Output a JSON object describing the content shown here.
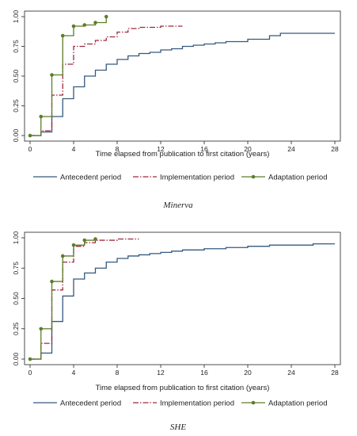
{
  "colors": {
    "antecedent": "#34597f",
    "implementation": "#a0283d",
    "adaptation": "#5d7d2a",
    "axis": "#222222"
  },
  "chart_data": [
    {
      "type": "line",
      "caption": "Minerva",
      "xlabel": "Time elapsed from publication to first citation (years)",
      "ylabel": "",
      "xlim": [
        0,
        28
      ],
      "ylim": [
        0,
        1
      ],
      "xticks": [
        0,
        4,
        8,
        12,
        16,
        20,
        24,
        28
      ],
      "yticks": [
        "0.00",
        "0.25",
        "0.50",
        "0.75",
        "1.00"
      ],
      "grid": false,
      "legend_position": "bottom",
      "series": [
        {
          "name": "Antecedent period",
          "style": "solid",
          "x": [
            0,
            1,
            2,
            3,
            4,
            5,
            6,
            7,
            8,
            9,
            10,
            11,
            12,
            13,
            14,
            15,
            16,
            17,
            18,
            20,
            22,
            23,
            28
          ],
          "y": [
            0,
            0.03,
            0.16,
            0.31,
            0.41,
            0.5,
            0.55,
            0.6,
            0.64,
            0.67,
            0.69,
            0.7,
            0.72,
            0.73,
            0.75,
            0.76,
            0.77,
            0.78,
            0.79,
            0.81,
            0.84,
            0.86,
            0.86
          ]
        },
        {
          "name": "Implementation period",
          "style": "dashdot",
          "x": [
            0,
            1,
            2,
            3,
            4,
            5,
            6,
            7,
            8,
            9,
            10,
            12,
            14
          ],
          "y": [
            0,
            0.04,
            0.34,
            0.6,
            0.75,
            0.77,
            0.8,
            0.83,
            0.87,
            0.9,
            0.91,
            0.92,
            0.92
          ]
        },
        {
          "name": "Adaptation period",
          "style": "solid-markers",
          "x": [
            0,
            1,
            2,
            3,
            4,
            5,
            6,
            7
          ],
          "y": [
            0,
            0.16,
            0.51,
            0.84,
            0.92,
            0.93,
            0.95,
            1.0
          ]
        }
      ]
    },
    {
      "type": "line",
      "caption": "SHE",
      "xlabel": "Time elapsed from publication to first citation (years)",
      "ylabel": "",
      "xlim": [
        0,
        28
      ],
      "ylim": [
        0,
        1
      ],
      "xticks": [
        0,
        4,
        8,
        12,
        16,
        20,
        24,
        28
      ],
      "yticks": [
        "0.00",
        "0.25",
        "0.50",
        "0.75",
        "1.00"
      ],
      "grid": false,
      "legend_position": "bottom",
      "series": [
        {
          "name": "Antecedent period",
          "style": "solid",
          "x": [
            0,
            1,
            2,
            3,
            4,
            5,
            6,
            7,
            8,
            9,
            10,
            11,
            12,
            13,
            14,
            15,
            16,
            18,
            20,
            22,
            24,
            26,
            28
          ],
          "y": [
            0,
            0.05,
            0.31,
            0.52,
            0.66,
            0.71,
            0.75,
            0.8,
            0.83,
            0.85,
            0.86,
            0.87,
            0.88,
            0.89,
            0.9,
            0.9,
            0.91,
            0.92,
            0.93,
            0.94,
            0.94,
            0.95,
            0.95
          ]
        },
        {
          "name": "Implementation period",
          "style": "dashdot",
          "x": [
            0,
            1,
            2,
            3,
            4,
            5,
            6,
            7,
            8,
            10
          ],
          "y": [
            0,
            0.13,
            0.57,
            0.8,
            0.93,
            0.96,
            0.98,
            0.98,
            0.99,
            0.99
          ]
        },
        {
          "name": "Adaptation period",
          "style": "solid-markers",
          "x": [
            0,
            1,
            2,
            3,
            4,
            5,
            6
          ],
          "y": [
            0,
            0.25,
            0.64,
            0.85,
            0.94,
            0.98,
            0.99
          ]
        }
      ]
    }
  ]
}
